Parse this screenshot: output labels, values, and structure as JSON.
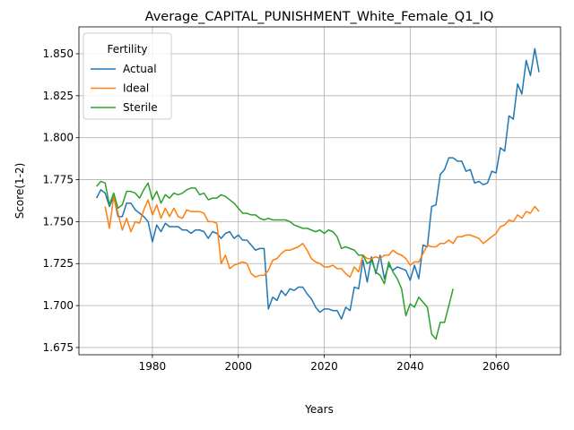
{
  "chart_data": {
    "type": "line",
    "title": "Average_CAPITAL_PUNISHMENT_White_Female_Q1_IQ",
    "x_label": "Years",
    "y_label": "Score(1-2)",
    "legend_title": "Fertility",
    "legend": "upper left",
    "grid": true,
    "x": [
      1967,
      1968,
      1969,
      1970,
      1971,
      1972,
      1973,
      1974,
      1975,
      1976,
      1977,
      1978,
      1979,
      1980,
      1981,
      1982,
      1983,
      1984,
      1985,
      1986,
      1987,
      1988,
      1989,
      1990,
      1991,
      1992,
      1993,
      1994,
      1995,
      1996,
      1997,
      1998,
      1999,
      2000,
      2001,
      2002,
      2003,
      2004,
      2005,
      2006,
      2007,
      2008,
      2009,
      2010,
      2011,
      2012,
      2013,
      2014,
      2015,
      2016,
      2017,
      2018,
      2019,
      2020,
      2021,
      2022,
      2023,
      2024,
      2025,
      2026,
      2027,
      2028,
      2029,
      2030,
      2031,
      2032,
      2033,
      2034,
      2035,
      2036,
      2037,
      2038,
      2039,
      2040,
      2041,
      2042,
      2043,
      2044,
      2045,
      2046,
      2047,
      2048,
      2049,
      2050,
      2051,
      2052,
      2053,
      2054,
      2055,
      2056,
      2057,
      2058,
      2059,
      2060,
      2061,
      2062,
      2063,
      2064,
      2065,
      2066,
      2067,
      2068,
      2069,
      2070
    ],
    "series": [
      {
        "name": "Actual",
        "color": "#1f77b4",
        "values": [
          1.764,
          1.769,
          1.767,
          1.759,
          1.765,
          1.753,
          1.753,
          1.761,
          1.761,
          1.757,
          1.755,
          1.753,
          1.75,
          1.738,
          1.748,
          1.744,
          1.749,
          1.747,
          1.747,
          1.747,
          1.745,
          1.745,
          1.743,
          1.745,
          1.745,
          1.744,
          1.74,
          1.744,
          1.743,
          1.74,
          1.743,
          1.744,
          1.74,
          1.742,
          1.739,
          1.739,
          1.736,
          1.733,
          1.734,
          1.734,
          1.698,
          1.705,
          1.703,
          1.709,
          1.706,
          1.71,
          1.709,
          1.711,
          1.711,
          1.707,
          1.704,
          1.699,
          1.696,
          1.698,
          1.698,
          1.697,
          1.697,
          1.692,
          1.699,
          1.697,
          1.711,
          1.71,
          1.727,
          1.714,
          1.729,
          1.719,
          1.73,
          1.716,
          1.724,
          1.721,
          1.723,
          1.722,
          1.721,
          1.715,
          1.724,
          1.716,
          1.736,
          1.735,
          1.759,
          1.76,
          1.778,
          1.781,
          1.788,
          1.788,
          1.786,
          1.786,
          1.78,
          1.781,
          1.773,
          1.774,
          1.772,
          1.773,
          1.78,
          1.779,
          1.794,
          1.792,
          1.813,
          1.811,
          1.832,
          1.826,
          1.846,
          1.837,
          1.853,
          1.839
        ]
      },
      {
        "name": "Ideal",
        "color": "#ff7f0e",
        "values": [
          null,
          null,
          1.759,
          1.746,
          1.765,
          1.755,
          1.745,
          1.752,
          1.744,
          1.75,
          1.749,
          1.757,
          1.763,
          1.754,
          1.76,
          1.752,
          1.758,
          1.753,
          1.758,
          1.753,
          1.752,
          1.757,
          1.756,
          1.756,
          1.756,
          1.755,
          1.75,
          1.75,
          1.749,
          1.725,
          1.73,
          1.722,
          1.724,
          1.725,
          1.726,
          1.725,
          1.719,
          1.717,
          1.718,
          1.718,
          1.721,
          1.727,
          1.728,
          1.731,
          1.733,
          1.733,
          1.734,
          1.735,
          1.737,
          1.733,
          1.728,
          1.726,
          1.725,
          1.723,
          1.723,
          1.724,
          1.722,
          1.722,
          1.719,
          1.717,
          1.723,
          1.72,
          1.73,
          1.728,
          1.728,
          1.729,
          1.728,
          1.73,
          1.73,
          1.733,
          1.731,
          1.73,
          1.728,
          1.724,
          1.726,
          1.726,
          1.731,
          1.736,
          1.735,
          1.735,
          1.737,
          1.737,
          1.739,
          1.737,
          1.741,
          1.741,
          1.742,
          1.742,
          1.741,
          1.74,
          1.737,
          1.739,
          1.741,
          1.743,
          1.747,
          1.748,
          1.751,
          1.75,
          1.754,
          1.752,
          1.756,
          1.755,
          1.759,
          1.756
        ]
      },
      {
        "name": "Sterile",
        "color": "#2ca02c",
        "values": [
          1.771,
          1.774,
          1.773,
          1.76,
          1.767,
          1.758,
          1.76,
          1.768,
          1.768,
          1.767,
          1.764,
          1.769,
          1.773,
          1.763,
          1.768,
          1.761,
          1.766,
          1.764,
          1.767,
          1.766,
          1.767,
          1.769,
          1.77,
          1.77,
          1.766,
          1.767,
          1.763,
          1.764,
          1.764,
          1.766,
          1.765,
          1.763,
          1.761,
          1.758,
          1.755,
          1.755,
          1.754,
          1.754,
          1.752,
          1.751,
          1.752,
          1.751,
          1.751,
          1.751,
          1.751,
          1.75,
          1.748,
          1.747,
          1.746,
          1.746,
          1.745,
          1.744,
          1.745,
          1.743,
          1.745,
          1.744,
          1.741,
          1.734,
          1.735,
          1.734,
          1.733,
          1.73,
          1.73,
          1.725,
          1.727,
          1.72,
          1.718,
          1.713,
          1.726,
          1.72,
          1.716,
          1.71,
          1.694,
          1.701,
          1.699,
          1.705,
          1.702,
          1.699,
          1.683,
          1.68,
          1.69,
          1.69,
          1.7,
          1.71,
          null,
          null,
          null,
          null,
          null,
          null,
          null,
          null,
          null,
          null,
          null,
          null,
          null,
          null,
          null,
          null,
          null,
          null,
          null,
          null
        ]
      }
    ],
    "xlim": [
      1962.9,
      2075
    ],
    "ylim": [
      1.6707,
      1.866
    ],
    "xticks": [
      1980,
      2000,
      2020,
      2040,
      2060
    ],
    "yticks": [
      1.675,
      {
        "value": 1.7,
        "label": "1.700"
      },
      1.725,
      {
        "value": 1.75,
        "label": "1.750"
      },
      1.775,
      {
        "value": 1.8,
        "label": "1.800"
      },
      1.825,
      {
        "value": 1.85,
        "label": "1.850"
      }
    ]
  }
}
